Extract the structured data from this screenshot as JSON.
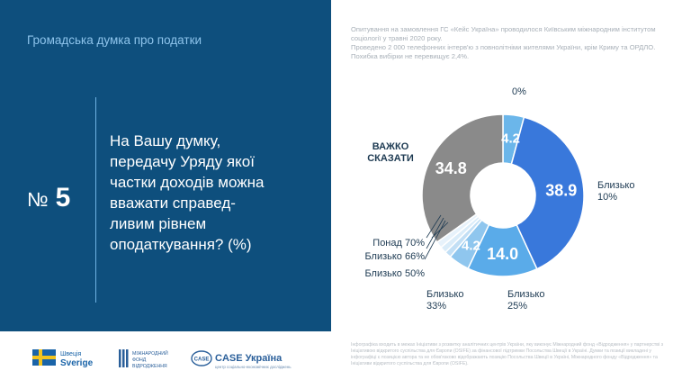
{
  "header": {
    "title": "Громадська думка про податки"
  },
  "question": {
    "number_sign": "№",
    "number": "5",
    "text": "На Вашу думку,\nпередачу Уряду якої\nчастки доходів можна\nвважати справед-\nливим рівнем\nоподаткування? (%)"
  },
  "survey_note": {
    "line1": "Опитування на замовлення ГС «Кейс Україна» проводилося Київським міжнародним інститутом соціології у травні 2020 року.",
    "line2": "Проведено 2 000 телефонних інтерв'ю з повнолітніми жителями України, крім Криму та ОРДЛО. Похибка вибірки не перевищує 2,4%."
  },
  "footer_note": "Інфографіка входить в межах Ініціативи з розвитку аналітичних центрів України, яку виконує Міжнародний фонд «Відродження» у партнерстві з Ініціативою відкритого суспільства для Європи (OSIFE) за фінансової підтримки Посольства Швеції в Україні. Думки та позиції викладені у інфографіці є позицією автора та не обов'язково відображають позицію Посольства Швеції в Україні, Міжнародного фонду «Відродження» та Ініціативи відкритого суспільства для Європи (OSIFE).",
  "logos": {
    "sweden": {
      "line1": "Швеція",
      "line2": "Sverige"
    },
    "irf": {
      "line1": "МІЖНАРОДНИЙ",
      "line2": "ФОНД",
      "line3": "ВІДРОДЖЕННЯ"
    },
    "case": {
      "badge": "CASE",
      "name": "CASE Україна",
      "tagline": "центр соціально-економічних досліджень"
    }
  },
  "chart_data": {
    "type": "pie",
    "variant": "donut",
    "slices": [
      {
        "label": "0%",
        "value": 4.2,
        "value_label": "4.2",
        "color": "#6bb6ea"
      },
      {
        "label": "Близько 10%",
        "value": 38.9,
        "value_label": "38.9",
        "color": "#3978db"
      },
      {
        "label": "Близько 25%",
        "value": 14.0,
        "value_label": "14.0",
        "color": "#5aabe9"
      },
      {
        "label": "Близько 33%",
        "value": 4.2,
        "value_label": "4.2",
        "color": "#8fc6ee"
      },
      {
        "label": "Близько 50%",
        "value": 1.3,
        "value_label": "",
        "color": "#c2dff5"
      },
      {
        "label": "Близько 66%",
        "value": 1.3,
        "value_label": "",
        "color": "#daecf9"
      },
      {
        "label": "Понад 70%",
        "value": 1.3,
        "value_label": "",
        "color": "#e7f2fb"
      },
      {
        "label": "ВАЖКО СКАЗАТИ",
        "value": 34.8,
        "value_label": "34.8",
        "color": "#8a8a8a"
      }
    ]
  }
}
